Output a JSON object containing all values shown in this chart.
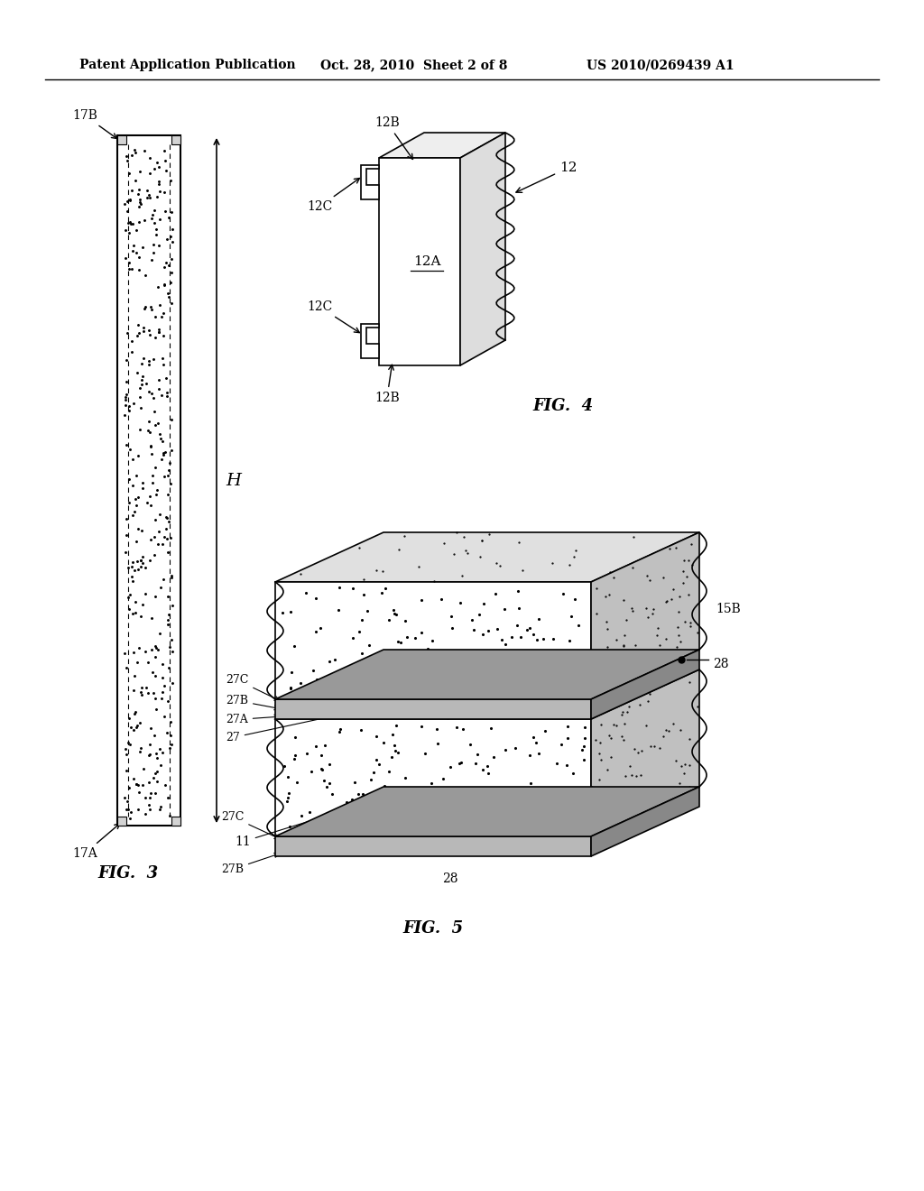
{
  "bg_color": "#ffffff",
  "header_text1": "Patent Application Publication",
  "header_text2": "Oct. 28, 2010  Sheet 2 of 8",
  "header_text3": "US 2010/0269439 A1",
  "fig3_label": "FIG.  3",
  "fig4_label": "FIG.  4",
  "fig5_label": "FIG.  5"
}
